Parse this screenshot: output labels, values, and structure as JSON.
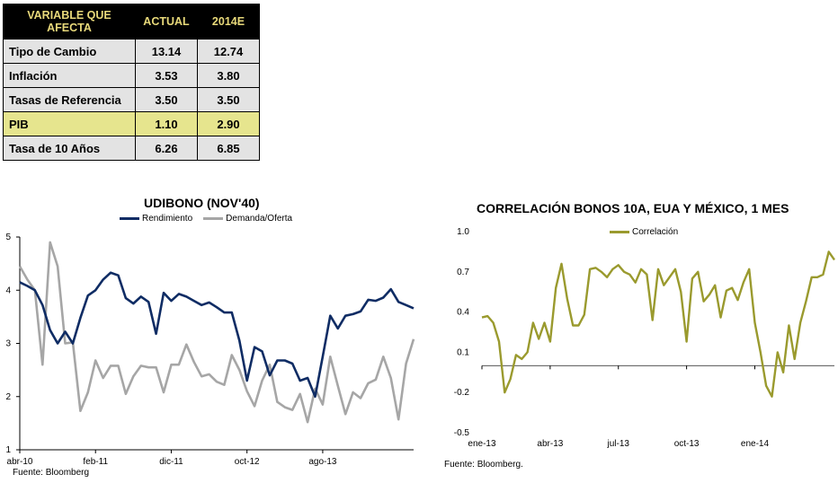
{
  "table": {
    "headers": [
      "VARIABLE QUE AFECTA",
      "ACTUAL",
      "2014E"
    ],
    "rows": [
      {
        "label": "Tipo de Cambio",
        "actual": "13.14",
        "e2014": "12.74"
      },
      {
        "label": "Inflación",
        "actual": "3.53",
        "e2014": "3.80"
      },
      {
        "label": "Tasas de Referencia",
        "actual": "3.50",
        "e2014": "3.50"
      },
      {
        "label": "PIB",
        "actual": "1.10",
        "e2014": "2.90"
      },
      {
        "label": "Tasa de 10 Años",
        "actual": "6.26",
        "e2014": "6.85"
      }
    ],
    "colors": {
      "header_bg": "#000000",
      "header_text": "#e8d97a",
      "row_gray": "#e3e3e3",
      "row_highlight": "#e6e58e"
    }
  },
  "chart_data": [
    {
      "type": "line",
      "title": "UDIBONO (NOV'40)",
      "source": "Fuente: Bloomberg",
      "x_ticks": [
        "abr-10",
        "feb-11",
        "dic-11",
        "oct-12",
        "ago-13"
      ],
      "x_tick_index": [
        0,
        10,
        20,
        30,
        40
      ],
      "ylim": [
        1,
        5
      ],
      "y_ticks": [
        1,
        2,
        3,
        4,
        5
      ],
      "grid": false,
      "legend_position": "top",
      "series": [
        {
          "name": "Rendimiento",
          "color": "#0f2c64",
          "values": [
            4.15,
            4.08,
            4.0,
            3.72,
            3.25,
            3.0,
            3.22,
            3.0,
            3.48,
            3.9,
            4.0,
            4.2,
            4.33,
            4.28,
            3.85,
            3.75,
            3.88,
            3.78,
            3.18,
            3.95,
            3.8,
            3.93,
            3.88,
            3.8,
            3.72,
            3.77,
            3.68,
            3.58,
            3.58,
            3.05,
            2.3,
            2.93,
            2.85,
            2.4,
            2.68,
            2.68,
            2.62,
            2.3,
            2.35,
            2.0,
            2.75,
            3.52,
            3.28,
            3.52,
            3.55,
            3.6,
            3.82,
            3.8,
            3.86,
            4.02,
            3.78,
            3.72,
            3.66
          ]
        },
        {
          "name": "Demanda/Oferta",
          "color": "#a6a6a6",
          "values": [
            4.45,
            4.2,
            4.0,
            2.6,
            4.9,
            4.45,
            3.0,
            3.02,
            1.73,
            2.08,
            2.68,
            2.35,
            2.58,
            2.58,
            2.05,
            2.38,
            2.58,
            2.55,
            2.55,
            2.08,
            2.6,
            2.6,
            2.98,
            2.65,
            2.38,
            2.42,
            2.28,
            2.22,
            2.78,
            2.5,
            2.1,
            1.82,
            2.3,
            2.6,
            1.9,
            1.8,
            1.75,
            2.05,
            1.52,
            2.15,
            1.85,
            2.75,
            2.2,
            1.67,
            2.08,
            1.97,
            2.25,
            2.32,
            2.75,
            2.35,
            1.57,
            2.62,
            3.08
          ]
        }
      ]
    },
    {
      "type": "line",
      "title": "CORRELACIÓN BONOS 10A, EUA Y MÉXICO, 1 MES",
      "source": "Fuente: Bloomberg.",
      "x_ticks": [
        "ene-13",
        "abr-13",
        "jul-13",
        "oct-13",
        "ene-14"
      ],
      "x_tick_index": [
        0,
        12,
        24,
        36,
        48
      ],
      "ylim": [
        -0.5,
        1.0
      ],
      "y_ticks": [
        "-0.5",
        "-0.2",
        "0.1",
        "0.4",
        "0.7",
        "1.0"
      ],
      "grid": false,
      "legend_position": "top",
      "series": [
        {
          "name": "Correlación",
          "color": "#9a9a2e",
          "values": [
            0.36,
            0.37,
            0.32,
            0.18,
            -0.2,
            -0.1,
            0.08,
            0.05,
            0.1,
            0.32,
            0.2,
            0.32,
            0.18,
            0.58,
            0.76,
            0.5,
            0.3,
            0.3,
            0.38,
            0.72,
            0.73,
            0.7,
            0.66,
            0.72,
            0.75,
            0.7,
            0.68,
            0.62,
            0.72,
            0.68,
            0.34,
            0.72,
            0.6,
            0.66,
            0.72,
            0.55,
            0.18,
            0.65,
            0.7,
            0.48,
            0.53,
            0.6,
            0.36,
            0.56,
            0.58,
            0.49,
            0.62,
            0.72,
            0.32,
            0.1,
            -0.15,
            -0.23,
            0.1,
            -0.05,
            0.3,
            0.05,
            0.32,
            0.48,
            0.66,
            0.66,
            0.68,
            0.85,
            0.79
          ]
        }
      ]
    }
  ]
}
